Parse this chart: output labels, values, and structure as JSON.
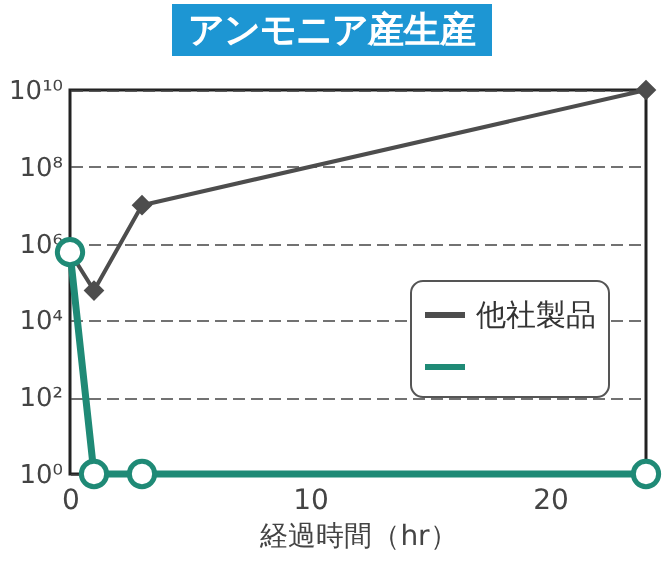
{
  "chart_data": {
    "type": "line",
    "title": "アンモニア産生産",
    "xlabel": "経過時間（hr）",
    "x": [
      0,
      1,
      3,
      24
    ],
    "log": "y",
    "grid": "y",
    "legend": "right",
    "xlim": [
      0,
      24
    ],
    "xticks": [
      0,
      10,
      20
    ],
    "ylim": [
      1,
      10000000000
    ],
    "yticks": [
      {
        "value": 1,
        "label": "10⁰"
      },
      {
        "value": 100,
        "label": "10²"
      },
      {
        "value": 10000,
        "label": "10⁴"
      },
      {
        "value": 1000000,
        "label": "10⁶"
      },
      {
        "value": 100000000,
        "label": "10⁸"
      },
      {
        "value": 10000000000,
        "label": "10¹⁰"
      }
    ],
    "series": [
      {
        "name": "他社製品",
        "color": "#4d4d4d",
        "marker": "diamond",
        "values": [
          600000,
          60000,
          10000000,
          10000000000
        ]
      },
      {
        "color": "#1f8a76",
        "marker": "circle",
        "values": [
          600000,
          1,
          1,
          1
        ]
      }
    ]
  }
}
